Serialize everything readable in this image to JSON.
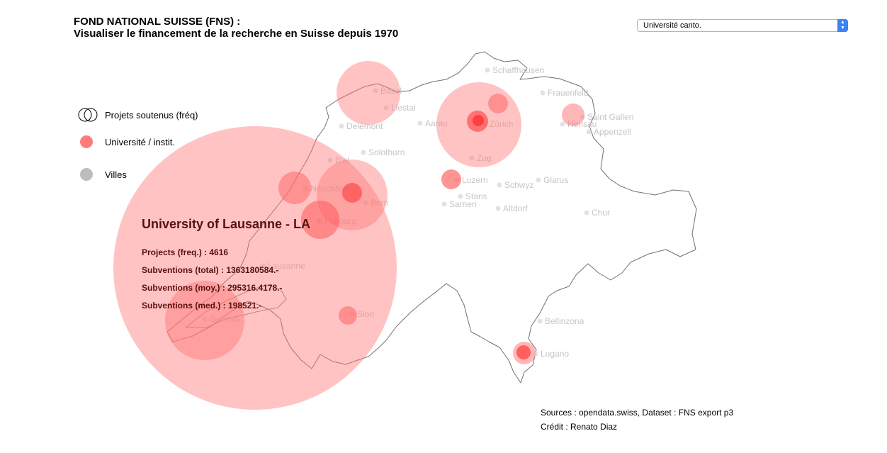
{
  "title_line1": "FOND NATIONAL SUISSE (FNS) :",
  "title_line2": "Visualiser le financement de la recherche en Suisse depuis 1970",
  "select": {
    "value": "Université canto."
  },
  "legend": {
    "projects": "Projets soutenus (fréq)",
    "institution": "Université / instit.",
    "cities": "Villes",
    "colors": {
      "institution": "#ff6b6b",
      "city": "#bdbdbd"
    }
  },
  "info": {
    "name": "University of Lausanne - LA",
    "projects": "Projects (freq.) : 4616",
    "total": "Subventions (total) : 1363180584.-",
    "mean": "Subventions (moy.) : 295316.4178.-",
    "median": "Subventions (med.) : 198521.-"
  },
  "credits": {
    "sources": "Sources : opendata.swiss, Dataset : FNS export p3",
    "credit": "Crédit : Renato Diaz"
  },
  "cities": [
    "Schaffhausen",
    "Basel",
    "Liestal",
    "Frauenfeld",
    "Delémont",
    "Aarau",
    "Zürich",
    "Saint Gallen",
    "Herisau",
    "Appenzell",
    "Solothurn",
    "Biel",
    "Zug",
    "Neuchâtel",
    "Luzern",
    "Schwyz",
    "Glarus",
    "Bern",
    "Stans",
    "Sarnen",
    "Altdorf",
    "Chur",
    "Fribourg",
    "Lausanne",
    "Sion",
    "Geneva",
    "Bellinzona",
    "Lugano"
  ],
  "colors": {
    "bubble": "#ff7b7b",
    "bubble_dark": "#ff3030",
    "border": "#6b6b6b",
    "city_label": "#c6c6c6"
  }
}
